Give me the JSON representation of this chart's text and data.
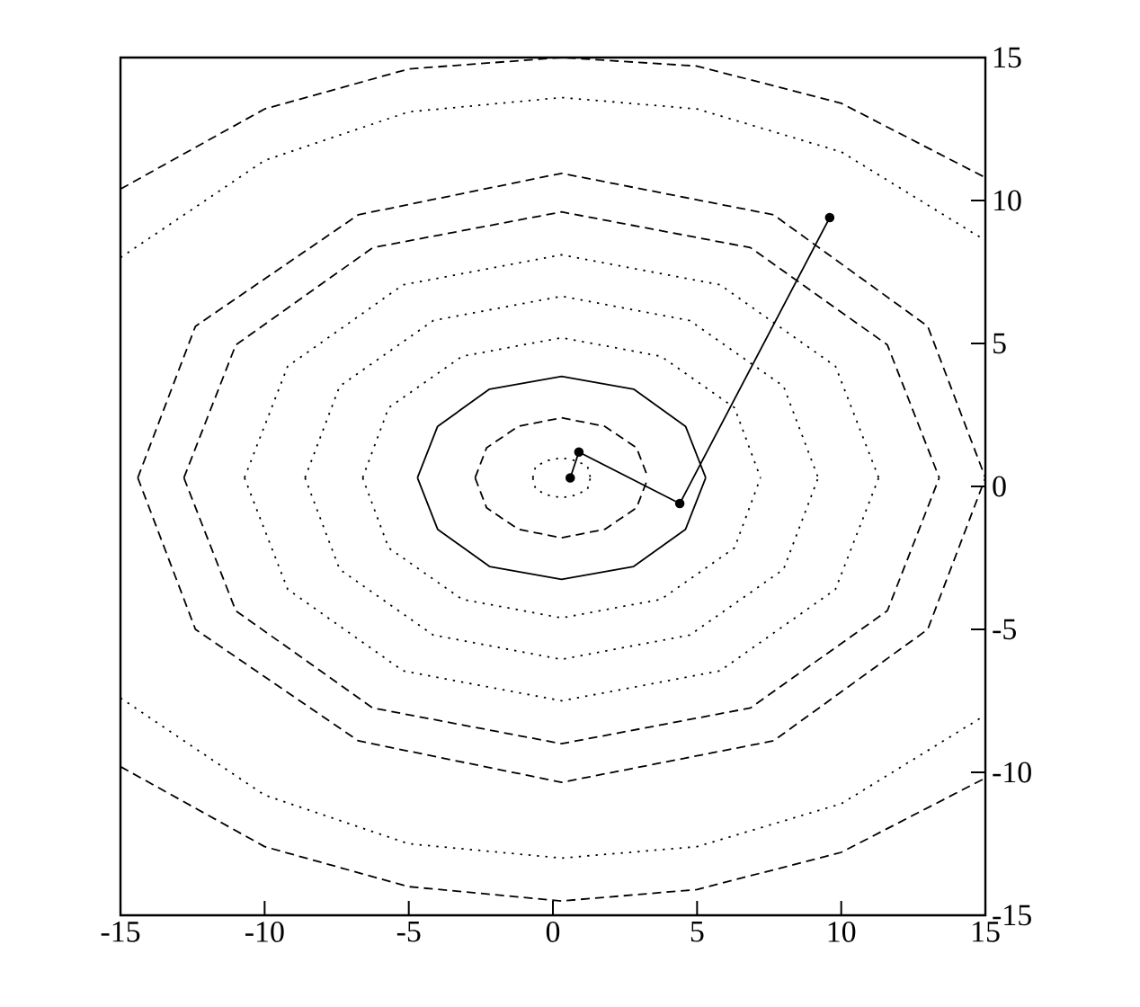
{
  "chart_data": {
    "type": "line",
    "xlim": [
      -15,
      15
    ],
    "ylim": [
      -15,
      15
    ],
    "xticks": [
      -15,
      -10,
      -5,
      0,
      5,
      10,
      15
    ],
    "yticks": [
      -15,
      -10,
      -5,
      0,
      5,
      10,
      15
    ],
    "grid": false,
    "series": [
      {
        "color": "#000000",
        "line_style": "dotted",
        "marker": "none",
        "x": [
          -0.7,
          -0.6,
          -0.2,
          0.3,
          0.8,
          1.2,
          1.3
        ],
        "values": [
          0.3,
          0.7,
          0.9,
          1.0,
          0.9,
          0.7,
          0.3
        ]
      },
      {
        "color": "#000000",
        "line_style": "dotted",
        "marker": "none",
        "x": [
          -0.7,
          -0.6,
          -0.2,
          0.3,
          0.8,
          1.2,
          1.3
        ],
        "values": [
          0.3,
          -0.1,
          -0.3,
          -0.4,
          -0.3,
          -0.1,
          0.3
        ]
      },
      {
        "color": "#000000",
        "line_style": "dashed",
        "marker": "none",
        "x": [
          -2.7,
          -2.3,
          -1.2,
          0.3,
          1.8,
          2.9,
          3.3
        ],
        "values": [
          0.3,
          1.35,
          2.1,
          2.4,
          2.1,
          1.35,
          0.3
        ]
      },
      {
        "color": "#000000",
        "line_style": "dashed",
        "marker": "none",
        "x": [
          -2.7,
          -2.3,
          -1.2,
          0.3,
          1.8,
          2.9,
          3.3
        ],
        "values": [
          0.3,
          -0.75,
          -1.5,
          -1.8,
          -1.5,
          -0.75,
          0.3
        ]
      },
      {
        "color": "#000000",
        "line_style": "solid",
        "marker": "none",
        "x": [
          -4.7,
          -4.0,
          -2.2,
          0.3,
          2.8,
          4.6,
          5.3
        ],
        "values": [
          0.3,
          2.1,
          3.4,
          3.85,
          3.4,
          2.1,
          0.3
        ]
      },
      {
        "color": "#000000",
        "line_style": "solid",
        "marker": "none",
        "x": [
          -4.7,
          -4.0,
          -2.2,
          0.3,
          2.8,
          4.6,
          5.3
        ],
        "values": [
          0.3,
          -1.5,
          -2.8,
          -3.25,
          -2.8,
          -1.5,
          0.3
        ]
      },
      {
        "color": "#000000",
        "line_style": "dotted",
        "marker": "none",
        "x": [
          -6.6,
          -5.7,
          -3.15,
          0.3,
          3.75,
          6.3,
          7.2
        ],
        "values": [
          0.3,
          2.75,
          4.55,
          5.2,
          4.55,
          2.75,
          0.3
        ]
      },
      {
        "color": "#000000",
        "line_style": "dotted",
        "marker": "none",
        "x": [
          -6.6,
          -5.7,
          -3.15,
          0.3,
          3.75,
          6.3,
          7.2
        ],
        "values": [
          0.3,
          -2.15,
          -3.95,
          -4.6,
          -3.95,
          -2.15,
          0.3
        ]
      },
      {
        "color": "#000000",
        "line_style": "dotted",
        "marker": "none",
        "x": [
          -8.6,
          -7.4,
          -4.15,
          0.3,
          4.75,
          8.0,
          9.2
        ],
        "values": [
          0.3,
          3.5,
          5.8,
          6.65,
          5.8,
          3.5,
          0.3
        ]
      },
      {
        "color": "#000000",
        "line_style": "dotted",
        "marker": "none",
        "x": [
          -8.6,
          -7.4,
          -4.15,
          0.3,
          4.75,
          8.0,
          9.2
        ],
        "values": [
          0.3,
          -2.9,
          -5.2,
          -6.05,
          -5.2,
          -2.9,
          0.3
        ]
      },
      {
        "color": "#000000",
        "line_style": "dotted",
        "marker": "none",
        "x": [
          -10.7,
          -9.2,
          -5.2,
          0.3,
          5.8,
          9.8,
          11.3
        ],
        "values": [
          0.3,
          4.2,
          7.05,
          8.1,
          7.05,
          4.2,
          0.3
        ]
      },
      {
        "color": "#000000",
        "line_style": "dotted",
        "marker": "none",
        "x": [
          -10.7,
          -9.2,
          -5.2,
          0.3,
          5.8,
          9.8,
          11.3
        ],
        "values": [
          0.3,
          -3.6,
          -6.45,
          -7.5,
          -6.45,
          -3.6,
          0.3
        ]
      },
      {
        "color": "#000000",
        "line_style": "dashed",
        "marker": "none",
        "x": [
          -12.8,
          -11.0,
          -6.25,
          0.3,
          6.85,
          11.6,
          13.4
        ],
        "values": [
          0.3,
          4.95,
          8.35,
          9.6,
          8.35,
          4.95,
          0.3
        ]
      },
      {
        "color": "#000000",
        "line_style": "dashed",
        "marker": "none",
        "x": [
          -12.8,
          -11.0,
          -6.25,
          0.3,
          6.85,
          11.6,
          13.4
        ],
        "values": [
          0.3,
          -4.35,
          -7.75,
          -9.0,
          -7.75,
          -4.35,
          0.3
        ]
      },
      {
        "color": "#000000",
        "line_style": "dashed",
        "marker": "none",
        "x": [
          -14.4,
          -12.4,
          -6.75,
          0.3,
          7.65,
          13.0,
          15.0
        ],
        "values": [
          0.3,
          5.6,
          9.5,
          10.95,
          9.5,
          5.6,
          0.3
        ]
      },
      {
        "color": "#000000",
        "line_style": "dashed",
        "marker": "none",
        "x": [
          -14.4,
          -12.4,
          -6.75,
          0.3,
          7.65,
          13.0,
          15.0
        ],
        "values": [
          0.3,
          -5.0,
          -8.9,
          -10.35,
          -8.9,
          -5.0,
          0.3
        ]
      },
      {
        "color": "#000000",
        "line_style": "dotted",
        "marker": "none",
        "x": [
          -15,
          -10,
          -5,
          0.3,
          5,
          10,
          15
        ],
        "values": [
          8.0,
          11.4,
          13.1,
          13.6,
          13.2,
          11.7,
          8.6
        ]
      },
      {
        "color": "#000000",
        "line_style": "dotted",
        "marker": "none",
        "x": [
          -15,
          -10,
          -5,
          0.3,
          5,
          10,
          15
        ],
        "values": [
          -7.4,
          -10.8,
          -12.5,
          -13.0,
          -12.6,
          -11.1,
          -8.0
        ]
      },
      {
        "color": "#000000",
        "line_style": "dashed",
        "marker": "none",
        "x": [
          -15,
          -10,
          -5,
          0.3,
          5,
          10,
          15
        ],
        "values": [
          10.4,
          13.2,
          14.6,
          15.0,
          14.7,
          13.4,
          10.8
        ]
      },
      {
        "color": "#000000",
        "line_style": "dashed",
        "marker": "none",
        "x": [
          -15,
          -10,
          -5,
          0.3,
          5,
          10,
          15
        ],
        "values": [
          -9.8,
          -12.6,
          -14.0,
          -14.5,
          -14.1,
          -12.8,
          -10.2
        ]
      },
      {
        "color": "#000000",
        "line_style": "solid",
        "marker": "circle",
        "x": [
          9.6,
          4.4,
          0.9,
          0.6
        ],
        "values": [
          9.4,
          -0.6,
          1.2,
          0.3
        ]
      }
    ]
  }
}
